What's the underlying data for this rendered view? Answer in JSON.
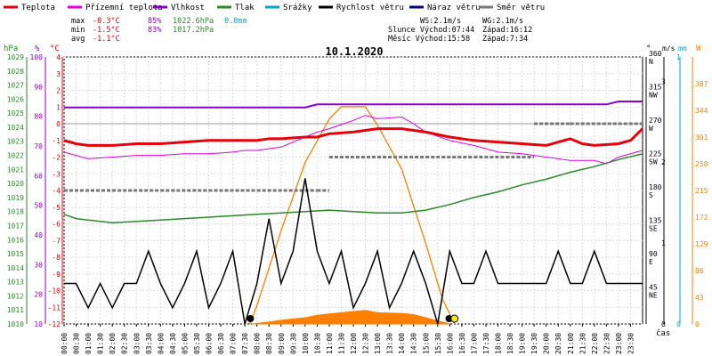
{
  "chart_data": {
    "type": "line",
    "title": "10.1.2020",
    "x_axis_label": "čas",
    "legend": [
      {
        "name": "Teplota",
        "color": "#e8000b"
      },
      {
        "name": "Přízemní teplota",
        "color": "#e000e0"
      },
      {
        "name": "Vlhkost",
        "color": "#8e00c8"
      },
      {
        "name": "Tlak",
        "color": "#2a8a2a"
      },
      {
        "name": "Srážky",
        "color": "#00a7c4"
      },
      {
        "name": "Rychlost větru",
        "color": "#000000"
      },
      {
        "name": "Náraz větru",
        "color": "#000080"
      },
      {
        "name": "Směr větru",
        "color": "#777777"
      }
    ],
    "stats": {
      "max": {
        "label": "max",
        "temp": "-0.3°C",
        "hum": "85%",
        "press": "1022.6hPa",
        "rain": "0.0mm"
      },
      "min": {
        "label": "min",
        "temp": "-1.5°C",
        "hum": "83%",
        "press": "1017.2hPa"
      },
      "avg": {
        "label": "avg",
        "temp": "-1.1°C"
      }
    },
    "wind_info": {
      "ws": "WS:2.1m/s",
      "wg": "WG:2.1m/s"
    },
    "sun": {
      "rise": "Slunce Východ:07:44",
      "set": "Západ:16:12"
    },
    "moon": {
      "rise": "Měsíc  Východ:15:58",
      "set": "Západ:7:34"
    },
    "axes": {
      "hpa": {
        "unit": "hPa",
        "ticks": [
          "1010",
          "1011",
          "1012",
          "1013",
          "1014",
          "1015",
          "1016",
          "1017",
          "1018",
          "1019",
          "1020",
          "1021",
          "1022",
          "1023",
          "1024",
          "1025",
          "1026",
          "1027",
          "1028",
          "1029"
        ],
        "color": "#2a8a2a"
      },
      "pct": {
        "unit": "%",
        "ticks": [
          "10",
          "20",
          "30",
          "40",
          "50",
          "60",
          "70",
          "80",
          "90",
          "100"
        ],
        "color": "#8e00c8"
      },
      "temp": {
        "unit": "°C",
        "ticks": [
          "-12",
          "-11",
          "-10",
          "-9",
          "-8",
          "-7",
          "-6",
          "-5",
          "-4",
          "-3",
          "-2",
          "-1",
          "0",
          "1",
          "2",
          "3",
          "4"
        ],
        "color": "#e8000b"
      },
      "dir": {
        "unit": "°",
        "ticks": [
          {
            "v": "45",
            "l": "NE"
          },
          {
            "v": "90",
            "l": "E"
          },
          {
            "v": "135",
            "l": "SE"
          },
          {
            "v": "180",
            "l": "S"
          },
          {
            "v": "225",
            "l": "SW"
          },
          {
            "v": "270",
            "l": "W"
          },
          {
            "v": "315",
            "l": "NW"
          },
          {
            "v": "360",
            "l": "N"
          }
        ]
      },
      "ms": {
        "unit": "m/s",
        "ticks": [
          "0",
          "1",
          "2",
          "3"
        ]
      },
      "mm": {
        "unit": "mm",
        "ticks": [
          "0",
          "1"
        ],
        "color": "#00a7c4"
      },
      "wm2": {
        "unit": "W",
        "ticks": [
          "0",
          "43",
          "86",
          "129",
          "172",
          "215",
          "258",
          "301",
          "344",
          "387"
        ],
        "color": "#ff7f00"
      }
    },
    "x_ticks": [
      "00:00",
      "00:30",
      "01:00",
      "01:30",
      "02:00",
      "02:30",
      "03:00",
      "03:30",
      "04:00",
      "04:30",
      "05:00",
      "05:30",
      "06:00",
      "06:30",
      "07:00",
      "07:30",
      "08:00",
      "08:30",
      "09:00",
      "09:30",
      "10:00",
      "10:30",
      "11:00",
      "11:30",
      "12:00",
      "12:30",
      "13:00",
      "13:30",
      "14:00",
      "14:30",
      "15:00",
      "15:30",
      "16:00",
      "16:30",
      "17:00",
      "17:30",
      "18:00",
      "18:30",
      "19:00",
      "19:30",
      "20:00",
      "20:30",
      "21:00",
      "21:30",
      "22:00",
      "22:30",
      "23:00",
      "23:30"
    ],
    "series": {
      "temperature": {
        "name": "Teplota",
        "unit": "°C",
        "points": [
          [
            0,
            -1.0
          ],
          [
            0.5,
            -1.2
          ],
          [
            1,
            -1.3
          ],
          [
            2,
            -1.3
          ],
          [
            3,
            -1.2
          ],
          [
            4,
            -1.2
          ],
          [
            5,
            -1.1
          ],
          [
            6,
            -1.0
          ],
          [
            7,
            -1.0
          ],
          [
            8,
            -1.0
          ],
          [
            8.5,
            -0.9
          ],
          [
            9,
            -0.9
          ],
          [
            10,
            -0.8
          ],
          [
            10.5,
            -0.8
          ],
          [
            11,
            -0.6
          ],
          [
            12,
            -0.5
          ],
          [
            12.5,
            -0.4
          ],
          [
            13,
            -0.3
          ],
          [
            14,
            -0.3
          ],
          [
            14.5,
            -0.4
          ],
          [
            15,
            -0.5
          ],
          [
            16,
            -0.8
          ],
          [
            17,
            -1.0
          ],
          [
            18,
            -1.1
          ],
          [
            19,
            -1.2
          ],
          [
            20,
            -1.3
          ],
          [
            21,
            -0.9
          ],
          [
            21.5,
            -1.2
          ],
          [
            22,
            -1.3
          ],
          [
            23,
            -1.2
          ],
          [
            23.5,
            -1.0
          ],
          [
            24,
            -0.3
          ]
        ]
      },
      "ground_temperature": {
        "name": "Přízemní teplota",
        "unit": "°C",
        "points": [
          [
            0,
            -1.7
          ],
          [
            1,
            -2.1
          ],
          [
            2,
            -2.0
          ],
          [
            3,
            -1.9
          ],
          [
            4,
            -1.9
          ],
          [
            5,
            -1.8
          ],
          [
            6,
            -1.8
          ],
          [
            7,
            -1.7
          ],
          [
            7.5,
            -1.6
          ],
          [
            8,
            -1.6
          ],
          [
            9,
            -1.4
          ],
          [
            10,
            -0.8
          ],
          [
            10.5,
            -0.5
          ],
          [
            11,
            -0.3
          ],
          [
            12,
            0.2
          ],
          [
            12.5,
            0.5
          ],
          [
            13,
            0.3
          ],
          [
            14,
            0.4
          ],
          [
            14.5,
            0.0
          ],
          [
            15,
            -0.5
          ],
          [
            16,
            -1.0
          ],
          [
            17,
            -1.3
          ],
          [
            18,
            -1.7
          ],
          [
            19,
            -1.8
          ],
          [
            20,
            -2.0
          ],
          [
            21,
            -2.2
          ],
          [
            22,
            -2.2
          ],
          [
            22.5,
            -2.4
          ],
          [
            23,
            -2.0
          ],
          [
            24,
            -1.6
          ]
        ]
      },
      "humidity": {
        "name": "Vlhkost",
        "unit": "%",
        "points": [
          [
            0,
            83
          ],
          [
            8,
            83
          ],
          [
            10,
            83
          ],
          [
            10.5,
            84
          ],
          [
            13,
            84
          ],
          [
            18,
            84
          ],
          [
            20,
            84
          ],
          [
            22.5,
            84
          ],
          [
            23,
            85
          ],
          [
            24,
            85
          ]
        ]
      },
      "pressure": {
        "name": "Tlak",
        "unit": "hPa",
        "points": [
          [
            0,
            1017.8
          ],
          [
            0.5,
            1017.5
          ],
          [
            1,
            1017.4
          ],
          [
            2,
            1017.2
          ],
          [
            3,
            1017.3
          ],
          [
            4,
            1017.4
          ],
          [
            5,
            1017.5
          ],
          [
            6,
            1017.6
          ],
          [
            7,
            1017.7
          ],
          [
            8,
            1017.8
          ],
          [
            9,
            1017.9
          ],
          [
            10,
            1018.0
          ],
          [
            11,
            1018.1
          ],
          [
            12,
            1018.0
          ],
          [
            13,
            1017.9
          ],
          [
            14,
            1017.9
          ],
          [
            15,
            1018.1
          ],
          [
            16,
            1018.5
          ],
          [
            17,
            1019.0
          ],
          [
            18,
            1019.4
          ],
          [
            19,
            1019.9
          ],
          [
            20,
            1020.3
          ],
          [
            21,
            1020.8
          ],
          [
            22,
            1021.2
          ],
          [
            23,
            1021.7
          ],
          [
            24,
            1022.1
          ]
        ]
      },
      "wind_speed": {
        "name": "Rychlost větru",
        "unit": "m/s",
        "points": [
          [
            0,
            0.5
          ],
          [
            0.5,
            0.5
          ],
          [
            1,
            0.2
          ],
          [
            1.5,
            0.5
          ],
          [
            2,
            0.2
          ],
          [
            2.5,
            0.5
          ],
          [
            3,
            0.5
          ],
          [
            3.5,
            0.9
          ],
          [
            4,
            0.5
          ],
          [
            4.5,
            0.2
          ],
          [
            5,
            0.5
          ],
          [
            5.5,
            0.9
          ],
          [
            6,
            0.2
          ],
          [
            6.5,
            0.5
          ],
          [
            7,
            0.9
          ],
          [
            7.5,
            0.0
          ],
          [
            8,
            0.5
          ],
          [
            8.5,
            1.3
          ],
          [
            9,
            0.5
          ],
          [
            9.5,
            0.9
          ],
          [
            10,
            1.8
          ],
          [
            10.5,
            0.9
          ],
          [
            11,
            0.5
          ],
          [
            11.5,
            0.9
          ],
          [
            12,
            0.2
          ],
          [
            12.5,
            0.5
          ],
          [
            13,
            0.9
          ],
          [
            13.5,
            0.2
          ],
          [
            14,
            0.5
          ],
          [
            14.5,
            0.9
          ],
          [
            15,
            0.5
          ],
          [
            15.5,
            0.0
          ],
          [
            16,
            0.9
          ],
          [
            16.5,
            0.5
          ],
          [
            17,
            0.5
          ],
          [
            17.5,
            0.9
          ],
          [
            18,
            0.5
          ],
          [
            19,
            0.5
          ],
          [
            20,
            0.5
          ],
          [
            20.5,
            0.9
          ],
          [
            21,
            0.5
          ],
          [
            21.5,
            0.5
          ],
          [
            22,
            0.9
          ],
          [
            22.5,
            0.5
          ],
          [
            23,
            0.5
          ],
          [
            24,
            0.5
          ]
        ]
      },
      "wind_direction": {
        "name": "Směr větru",
        "unit": "°",
        "points": [
          [
            0,
            180
          ],
          [
            2,
            180
          ],
          [
            4,
            180
          ],
          [
            6,
            180
          ],
          [
            8,
            180
          ],
          [
            10.5,
            180
          ],
          [
            11,
            225
          ],
          [
            13,
            225
          ],
          [
            15,
            225
          ],
          [
            17,
            225
          ],
          [
            19,
            225
          ],
          [
            19.5,
            270
          ],
          [
            21,
            270
          ],
          [
            24,
            270
          ]
        ]
      },
      "solar_radiation": {
        "name": "Solar",
        "unit": "W/m2",
        "points": [
          [
            7.8,
            0
          ],
          [
            8.5,
            3
          ],
          [
            9,
            6
          ],
          [
            10,
            10
          ],
          [
            10.5,
            14
          ],
          [
            11,
            16
          ],
          [
            12,
            20
          ],
          [
            12.5,
            22
          ],
          [
            13,
            18
          ],
          [
            14,
            17
          ],
          [
            14.5,
            15
          ],
          [
            15,
            10
          ],
          [
            15.5,
            5
          ],
          [
            16,
            0
          ]
        ]
      },
      "solar_max": {
        "name": "Solar max",
        "unit": "W/m2",
        "points": [
          [
            7.7,
            0
          ],
          [
            8,
            30
          ],
          [
            9,
            150
          ],
          [
            10,
            260
          ],
          [
            11,
            330
          ],
          [
            11.5,
            350
          ],
          [
            12,
            350
          ],
          [
            12.5,
            350
          ],
          [
            13,
            320
          ],
          [
            14,
            250
          ],
          [
            15,
            130
          ],
          [
            15.7,
            40
          ],
          [
            16.2,
            0
          ]
        ]
      }
    },
    "markers": {
      "sunrise": 7.73,
      "sunset": 16.2,
      "moonrise": 15.97
    }
  }
}
